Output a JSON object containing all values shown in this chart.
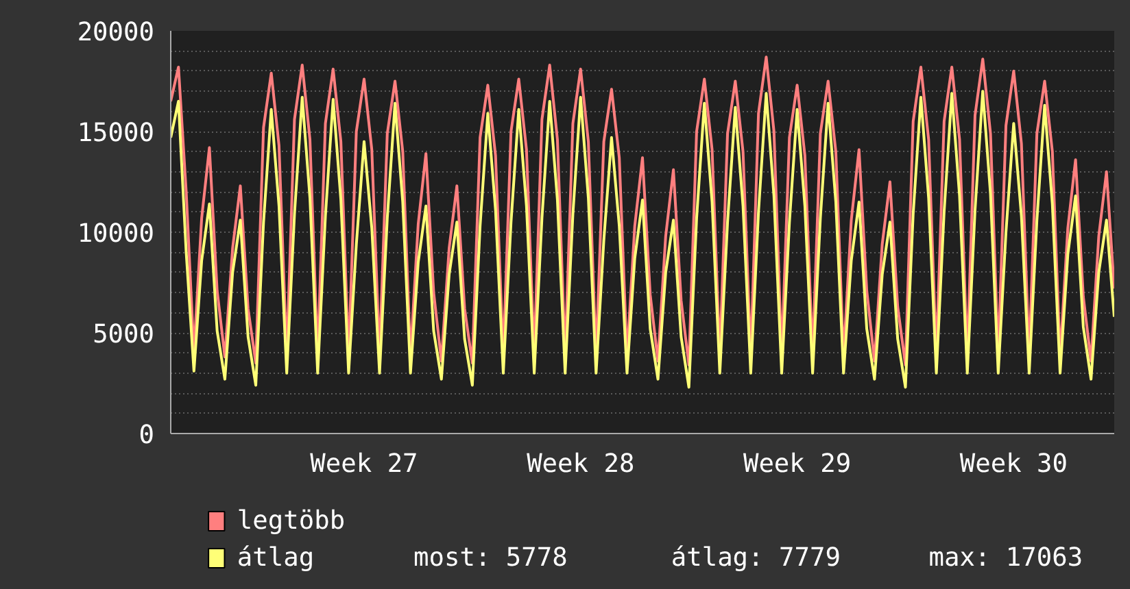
{
  "chart_data": {
    "type": "line",
    "categories": [
      null,
      null,
      null,
      null,
      null,
      null,
      null,
      null,
      null,
      null,
      null,
      null,
      null,
      null,
      null,
      null,
      null,
      null,
      null,
      null,
      null,
      null,
      null,
      null,
      null,
      "Week 27",
      null,
      null,
      null,
      null,
      null,
      null,
      null,
      null,
      null,
      null,
      null,
      null,
      null,
      null,
      null,
      null,
      null,
      null,
      null,
      null,
      null,
      null,
      null,
      null,
      null,
      null,
      null,
      "Week 28",
      null,
      null,
      null,
      null,
      null,
      null,
      null,
      null,
      null,
      null,
      null,
      null,
      null,
      null,
      null,
      null,
      null,
      null,
      null,
      null,
      null,
      null,
      null,
      null,
      null,
      null,
      null,
      "Week 29",
      null,
      null,
      null,
      null,
      null,
      null,
      null,
      null,
      null,
      null,
      null,
      null,
      null,
      null,
      null,
      null,
      null,
      null,
      null,
      null,
      null,
      null,
      null,
      null,
      null,
      null,
      null,
      "Week 30",
      null,
      null,
      null,
      null,
      null,
      null,
      null,
      null,
      null,
      null,
      null,
      null,
      null
    ],
    "series": [
      {
        "name": "legtöbb",
        "color": "#ff7f7f",
        "values": [
          16500,
          18200,
          12000,
          4000,
          10700,
          14200,
          7100,
          3800,
          9200,
          12300,
          6200,
          3500,
          15200,
          17900,
          14300,
          3800,
          15600,
          18300,
          14600,
          3800,
          15400,
          18100,
          14500,
          3800,
          15000,
          17600,
          14100,
          3800,
          14900,
          17500,
          14000,
          3800,
          10400,
          13900,
          7000,
          3600,
          9200,
          12300,
          6200,
          3500,
          14700,
          17300,
          13800,
          3800,
          15000,
          17600,
          14100,
          3800,
          15600,
          18300,
          14600,
          3800,
          15400,
          18100,
          14500,
          3800,
          14500,
          17100,
          13700,
          3800,
          10300,
          13700,
          6900,
          3600,
          9800,
          13100,
          6600,
          3400,
          15000,
          17600,
          14100,
          3800,
          14900,
          17500,
          14000,
          3800,
          15900,
          18700,
          15000,
          3800,
          14700,
          17300,
          13800,
          3800,
          14900,
          17500,
          14000,
          3800,
          10600,
          14100,
          7100,
          3600,
          9400,
          12500,
          6300,
          3400,
          15500,
          18200,
          14600,
          3800,
          15500,
          18200,
          14600,
          3800,
          15800,
          18600,
          14900,
          3800,
          15300,
          18000,
          14400,
          3800,
          14900,
          17500,
          14000,
          3800,
          10200,
          13600,
          6800,
          3600,
          9800,
          13000,
          7200
        ]
      },
      {
        "name": "átlag",
        "color": "#ffff77",
        "values": [
          14700,
          16500,
          9000,
          3100,
          8600,
          11400,
          5100,
          2700,
          8000,
          10600,
          4800,
          2400,
          10500,
          16100,
          11300,
          3000,
          10900,
          16700,
          11700,
          3000,
          10800,
          16600,
          11600,
          3000,
          9400,
          14500,
          10200,
          3000,
          10700,
          16400,
          11500,
          3000,
          8500,
          11300,
          5100,
          2700,
          7900,
          10500,
          4700,
          2400,
          10300,
          15900,
          11100,
          3000,
          10500,
          16100,
          11300,
          3000,
          10700,
          16500,
          11600,
          3000,
          10900,
          16700,
          11700,
          3000,
          9600,
          14700,
          10300,
          3000,
          8700,
          11600,
          5200,
          2700,
          8000,
          10600,
          4800,
          2300,
          10700,
          16400,
          11500,
          3000,
          10500,
          16200,
          11300,
          3000,
          11000,
          16900,
          11800,
          3000,
          10500,
          16100,
          11300,
          3000,
          10700,
          16400,
          11500,
          3000,
          8600,
          11500,
          5200,
          2700,
          7900,
          10500,
          4700,
          2300,
          10900,
          16700,
          11700,
          3000,
          11000,
          16900,
          11800,
          3000,
          11100,
          17000,
          11900,
          3000,
          10000,
          15400,
          10800,
          3000,
          10600,
          16300,
          11400,
          3000,
          8900,
          11800,
          5300,
          2700,
          8000,
          10600,
          5800
        ]
      }
    ],
    "ylim": [
      0,
      20000
    ],
    "yticks": [
      0,
      {
        "value": 1000,
        "label": null
      },
      {
        "value": 2000,
        "label": null
      },
      {
        "value": 3000,
        "label": null
      },
      {
        "value": 4000,
        "label": null
      },
      5000,
      {
        "value": 6000,
        "label": null
      },
      {
        "value": 7000,
        "label": null
      },
      {
        "value": 8000,
        "label": null
      },
      {
        "value": 9000,
        "label": null
      },
      10000,
      {
        "value": 11000,
        "label": null
      },
      {
        "value": 12000,
        "label": null
      },
      {
        "value": 13000,
        "label": null
      },
      {
        "value": 14000,
        "label": null
      },
      15000,
      {
        "value": 16000,
        "label": null
      },
      {
        "value": 17000,
        "label": null
      },
      {
        "value": 18000,
        "label": null
      },
      {
        "value": 19000,
        "label": null
      },
      20000
    ],
    "grid": "y",
    "legend": "bottom",
    "line_style": "solid",
    "annotations": [
      "most: 5778",
      "átlag: 7779",
      "max: 17063"
    ]
  }
}
